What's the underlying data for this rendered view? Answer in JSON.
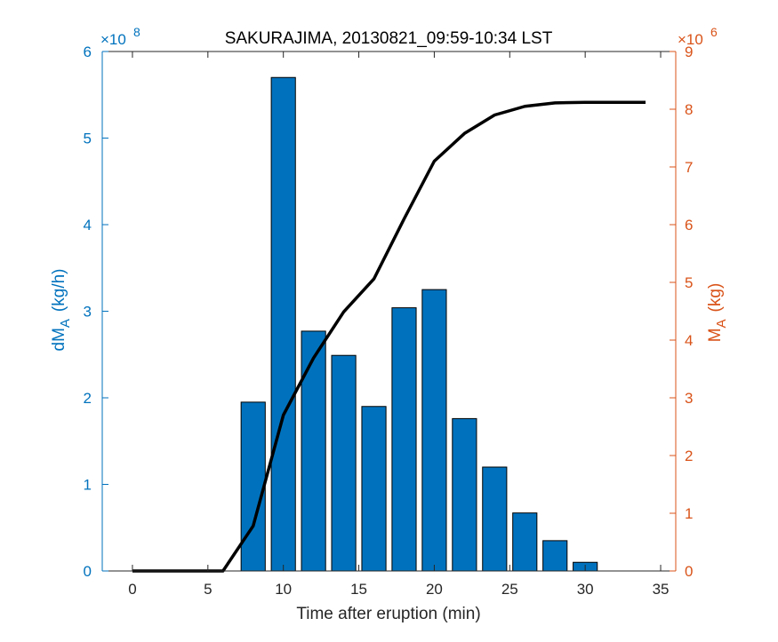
{
  "chart_data": {
    "type": "bar",
    "title": "SAKURAJIMA, 20130821_09:59-10:34 LST",
    "xlabel": "Time after eruption (min)",
    "xlim": [
      -2,
      36
    ],
    "xticks": [
      0,
      5,
      10,
      15,
      20,
      25,
      30,
      35
    ],
    "left_axis": {
      "label_main": "dM",
      "label_sub": "A",
      "label_unit": "(kg/h)",
      "multiplier_base": "×10",
      "multiplier_exp": "8",
      "ylim": [
        0,
        6
      ],
      "ticks": [
        0,
        1,
        2,
        3,
        4,
        5,
        6
      ],
      "color": "#0072BD"
    },
    "right_axis": {
      "label_main": "M",
      "label_sub": "A",
      "label_unit": "(kg)",
      "multiplier_base": "×10",
      "multiplier_exp": "6",
      "ylim": [
        0,
        9
      ],
      "ticks": [
        0,
        1,
        2,
        3,
        4,
        5,
        6,
        7,
        8,
        9
      ],
      "color": "#D95319"
    },
    "series": [
      {
        "type": "bar",
        "axis": "left",
        "color": "#0072BD",
        "x": [
          8,
          10,
          12,
          14,
          16,
          18,
          20,
          22,
          24,
          26,
          28,
          30
        ],
        "values": [
          1.95,
          5.7,
          2.77,
          2.49,
          1.9,
          3.04,
          3.25,
          1.76,
          1.2,
          0.67,
          0.35,
          0.1
        ]
      },
      {
        "type": "line",
        "axis": "right",
        "color": "#000000",
        "x": [
          0,
          2,
          4,
          6,
          8,
          10,
          12,
          14,
          16,
          18,
          20,
          22,
          24,
          26,
          28,
          30,
          32,
          34
        ],
        "values": [
          0,
          0,
          0,
          0,
          0.78,
          2.7,
          3.69,
          4.49,
          5.06,
          6.1,
          7.1,
          7.58,
          7.9,
          8.05,
          8.11,
          8.12,
          8.12,
          8.12
        ]
      }
    ],
    "grid": false,
    "legend": "none"
  }
}
